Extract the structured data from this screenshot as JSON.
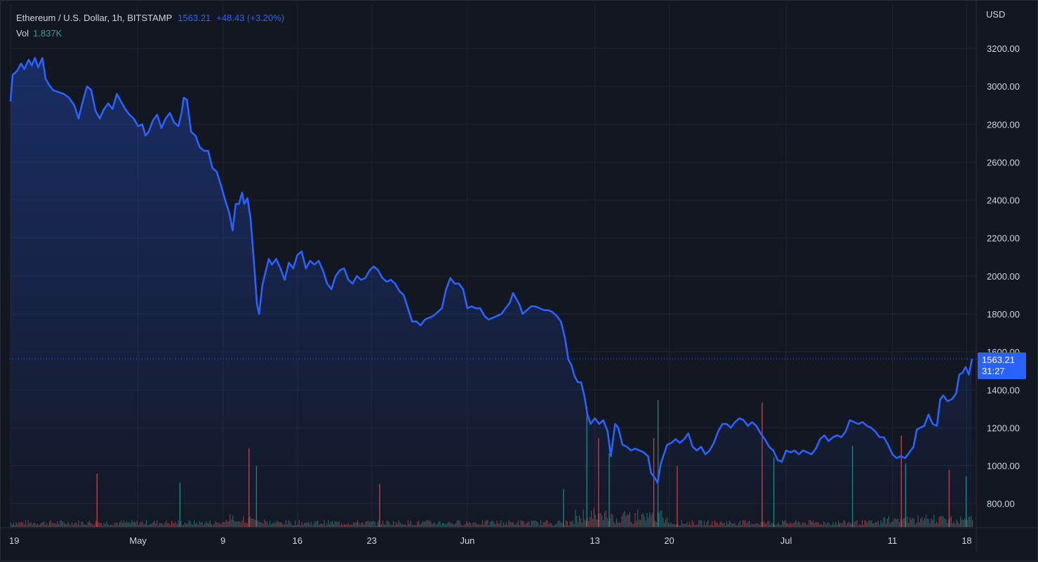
{
  "legend": {
    "symbol": "Ethereum / U.S. Dollar, 1h, BITSTAMP",
    "last": "1563.21",
    "change": "+48.43 (+3.20%)",
    "vol_label": "Vol",
    "vol_value": "1.837K"
  },
  "price_tag": {
    "price": "1563.21",
    "countdown": "31:27"
  },
  "colors": {
    "background": "#131722",
    "line": "#2962ff",
    "grid": "#1f2433",
    "vol_up": "#26a69a",
    "vol_down": "#ef5350"
  },
  "chart_data": {
    "type": "area",
    "currency": "USD",
    "timeframe": "1h",
    "grid": true,
    "ylim": [
      680,
      3320
    ],
    "y_ticks": [
      "3200.00",
      "3000.00",
      "2800.00",
      "2600.00",
      "2400.00",
      "2200.00",
      "2000.00",
      "1800.00",
      "1600.00",
      "1400.00",
      "1200.00",
      "1000.00",
      "800.00"
    ],
    "x_ticks": [
      {
        "label": "19",
        "day": 0
      },
      {
        "label": "May",
        "day": 12
      },
      {
        "label": "9",
        "day": 20
      },
      {
        "label": "16",
        "day": 27
      },
      {
        "label": "23",
        "day": 34
      },
      {
        "label": "Jun",
        "day": 43
      },
      {
        "label": "13",
        "day": 55
      },
      {
        "label": "20",
        "day": 62
      },
      {
        "label": "Jul",
        "day": 73
      },
      {
        "label": "11",
        "day": 83
      },
      {
        "label": "18",
        "day": 90
      }
    ],
    "x_range_days": [
      0,
      90.7
    ],
    "last_price": 1563.21,
    "series": [
      {
        "values": [
          [
            0,
            2920
          ],
          [
            0.2,
            3060
          ],
          [
            0.6,
            3080
          ],
          [
            1,
            3120
          ],
          [
            1.3,
            3090
          ],
          [
            1.7,
            3140
          ],
          [
            2,
            3110
          ],
          [
            2.3,
            3150
          ],
          [
            2.6,
            3100
          ],
          [
            3,
            3150
          ],
          [
            3.3,
            3040
          ],
          [
            3.6,
            3010
          ],
          [
            4,
            2980
          ],
          [
            4.5,
            2970
          ],
          [
            5,
            2960
          ],
          [
            5.5,
            2940
          ],
          [
            6,
            2900
          ],
          [
            6.4,
            2830
          ],
          [
            6.8,
            2920
          ],
          [
            7.2,
            3000
          ],
          [
            7.6,
            2980
          ],
          [
            8,
            2870
          ],
          [
            8.4,
            2830
          ],
          [
            8.8,
            2880
          ],
          [
            9.2,
            2910
          ],
          [
            9.6,
            2880
          ],
          [
            10,
            2960
          ],
          [
            10.4,
            2920
          ],
          [
            10.8,
            2880
          ],
          [
            11.2,
            2850
          ],
          [
            11.6,
            2830
          ],
          [
            12,
            2790
          ],
          [
            12.4,
            2800
          ],
          [
            12.7,
            2740
          ],
          [
            13,
            2760
          ],
          [
            13.4,
            2820
          ],
          [
            13.8,
            2850
          ],
          [
            14.2,
            2780
          ],
          [
            14.6,
            2830
          ],
          [
            15,
            2860
          ],
          [
            15.4,
            2810
          ],
          [
            15.8,
            2790
          ],
          [
            16.1,
            2860
          ],
          [
            16.3,
            2940
          ],
          [
            16.6,
            2930
          ],
          [
            17,
            2760
          ],
          [
            17.4,
            2740
          ],
          [
            17.8,
            2680
          ],
          [
            18.2,
            2660
          ],
          [
            18.6,
            2660
          ],
          [
            19,
            2570
          ],
          [
            19.4,
            2550
          ],
          [
            19.8,
            2480
          ],
          [
            20.2,
            2400
          ],
          [
            20.6,
            2330
          ],
          [
            20.9,
            2240
          ],
          [
            21.2,
            2380
          ],
          [
            21.5,
            2380
          ],
          [
            21.8,
            2440
          ],
          [
            22,
            2380
          ],
          [
            22.3,
            2410
          ],
          [
            22.6,
            2300
          ],
          [
            22.9,
            2080
          ],
          [
            23.2,
            1850
          ],
          [
            23.4,
            1800
          ],
          [
            23.7,
            1950
          ],
          [
            24,
            2020
          ],
          [
            24.3,
            2090
          ],
          [
            24.6,
            2060
          ],
          [
            25,
            2090
          ],
          [
            25.4,
            2040
          ],
          [
            25.8,
            1980
          ],
          [
            26.2,
            2070
          ],
          [
            26.6,
            2040
          ],
          [
            27,
            2110
          ],
          [
            27.4,
            2130
          ],
          [
            27.8,
            2040
          ],
          [
            28.2,
            2080
          ],
          [
            28.6,
            2060
          ],
          [
            29,
            2080
          ],
          [
            29.4,
            2030
          ],
          [
            29.8,
            1960
          ],
          [
            30.2,
            1930
          ],
          [
            30.6,
            2000
          ],
          [
            31,
            2030
          ],
          [
            31.4,
            2040
          ],
          [
            31.8,
            1980
          ],
          [
            32.2,
            1960
          ],
          [
            32.6,
            2000
          ],
          [
            33,
            1980
          ],
          [
            33.4,
            1990
          ],
          [
            33.8,
            2030
          ],
          [
            34.2,
            2050
          ],
          [
            34.6,
            2030
          ],
          [
            35,
            1990
          ],
          [
            35.4,
            1970
          ],
          [
            35.8,
            1980
          ],
          [
            36.2,
            1960
          ],
          [
            36.6,
            1920
          ],
          [
            37,
            1900
          ],
          [
            37.4,
            1830
          ],
          [
            37.8,
            1760
          ],
          [
            38.2,
            1760
          ],
          [
            38.6,
            1740
          ],
          [
            39,
            1770
          ],
          [
            39.4,
            1780
          ],
          [
            39.8,
            1790
          ],
          [
            40.2,
            1810
          ],
          [
            40.6,
            1830
          ],
          [
            41,
            1930
          ],
          [
            41.4,
            1990
          ],
          [
            41.8,
            1960
          ],
          [
            42.2,
            1960
          ],
          [
            42.6,
            1930
          ],
          [
            43,
            1830
          ],
          [
            43.4,
            1840
          ],
          [
            43.8,
            1830
          ],
          [
            44.2,
            1830
          ],
          [
            44.6,
            1790
          ],
          [
            45,
            1770
          ],
          [
            45.4,
            1780
          ],
          [
            45.8,
            1790
          ],
          [
            46.2,
            1800
          ],
          [
            46.6,
            1830
          ],
          [
            47,
            1860
          ],
          [
            47.3,
            1910
          ],
          [
            47.6,
            1880
          ],
          [
            47.9,
            1850
          ],
          [
            48.2,
            1800
          ],
          [
            48.6,
            1820
          ],
          [
            49,
            1840
          ],
          [
            49.4,
            1840
          ],
          [
            49.8,
            1830
          ],
          [
            50.2,
            1820
          ],
          [
            50.6,
            1820
          ],
          [
            51,
            1810
          ],
          [
            51.4,
            1790
          ],
          [
            51.8,
            1760
          ],
          [
            52.2,
            1670
          ],
          [
            52.5,
            1560
          ],
          [
            52.8,
            1530
          ],
          [
            53.1,
            1470
          ],
          [
            53.4,
            1440
          ],
          [
            53.7,
            1440
          ],
          [
            54,
            1370
          ],
          [
            54.3,
            1270
          ],
          [
            54.6,
            1220
          ],
          [
            55,
            1250
          ],
          [
            55.4,
            1220
          ],
          [
            55.8,
            1240
          ],
          [
            56.2,
            1180
          ],
          [
            56.5,
            1050
          ],
          [
            56.9,
            1220
          ],
          [
            57.2,
            1200
          ],
          [
            57.6,
            1110
          ],
          [
            58,
            1100
          ],
          [
            58.4,
            1080
          ],
          [
            58.8,
            1090
          ],
          [
            59.2,
            1080
          ],
          [
            59.6,
            1070
          ],
          [
            60,
            1050
          ],
          [
            60.3,
            960
          ],
          [
            60.6,
            940
          ],
          [
            60.9,
            910
          ],
          [
            61.2,
            1010
          ],
          [
            61.5,
            1060
          ],
          [
            61.8,
            1110
          ],
          [
            62.2,
            1120
          ],
          [
            62.6,
            1140
          ],
          [
            63,
            1120
          ],
          [
            63.4,
            1140
          ],
          [
            63.8,
            1170
          ],
          [
            64.2,
            1100
          ],
          [
            64.6,
            1080
          ],
          [
            65,
            1100
          ],
          [
            65.4,
            1060
          ],
          [
            65.8,
            1080
          ],
          [
            66.2,
            1120
          ],
          [
            66.6,
            1180
          ],
          [
            67,
            1220
          ],
          [
            67.4,
            1220
          ],
          [
            67.8,
            1200
          ],
          [
            68.2,
            1230
          ],
          [
            68.6,
            1250
          ],
          [
            69,
            1240
          ],
          [
            69.4,
            1210
          ],
          [
            69.8,
            1230
          ],
          [
            70.2,
            1210
          ],
          [
            70.6,
            1170
          ],
          [
            71,
            1140
          ],
          [
            71.4,
            1100
          ],
          [
            71.8,
            1080
          ],
          [
            72.2,
            1030
          ],
          [
            72.6,
            1020
          ],
          [
            73,
            1080
          ],
          [
            73.4,
            1070
          ],
          [
            73.8,
            1080
          ],
          [
            74.2,
            1060
          ],
          [
            74.6,
            1080
          ],
          [
            75,
            1070
          ],
          [
            75.4,
            1060
          ],
          [
            75.8,
            1090
          ],
          [
            76.2,
            1140
          ],
          [
            76.6,
            1160
          ],
          [
            77,
            1130
          ],
          [
            77.4,
            1150
          ],
          [
            77.8,
            1160
          ],
          [
            78.2,
            1150
          ],
          [
            78.6,
            1180
          ],
          [
            79,
            1240
          ],
          [
            79.4,
            1230
          ],
          [
            79.8,
            1220
          ],
          [
            80.2,
            1230
          ],
          [
            80.6,
            1210
          ],
          [
            81,
            1200
          ],
          [
            81.4,
            1180
          ],
          [
            81.8,
            1150
          ],
          [
            82.2,
            1150
          ],
          [
            82.6,
            1110
          ],
          [
            83,
            1060
          ],
          [
            83.4,
            1040
          ],
          [
            83.8,
            1050
          ],
          [
            84.2,
            1040
          ],
          [
            84.6,
            1070
          ],
          [
            85,
            1100
          ],
          [
            85.3,
            1190
          ],
          [
            85.6,
            1200
          ],
          [
            86,
            1210
          ],
          [
            86.4,
            1270
          ],
          [
            86.8,
            1220
          ],
          [
            87.2,
            1210
          ],
          [
            87.5,
            1350
          ],
          [
            87.8,
            1370
          ],
          [
            88.2,
            1340
          ],
          [
            88.6,
            1350
          ],
          [
            89,
            1380
          ],
          [
            89.3,
            1480
          ],
          [
            89.6,
            1490
          ],
          [
            89.9,
            1520
          ],
          [
            90.2,
            1480
          ],
          [
            90.5,
            1563
          ]
        ]
      }
    ],
    "volume": {
      "label": "Vol",
      "last": "1.837K",
      "spikes": [
        {
          "day": 8.1,
          "v": 0.42,
          "up": false
        },
        {
          "day": 15.9,
          "v": 0.35,
          "up": true
        },
        {
          "day": 22.4,
          "v": 0.62,
          "up": false
        },
        {
          "day": 23.1,
          "v": 0.48,
          "up": true
        },
        {
          "day": 34.7,
          "v": 0.34,
          "up": false
        },
        {
          "day": 52.0,
          "v": 0.3,
          "up": true
        },
        {
          "day": 54.2,
          "v": 0.95,
          "up": true
        },
        {
          "day": 55.3,
          "v": 0.7,
          "up": false
        },
        {
          "day": 56.3,
          "v": 0.58,
          "up": true
        },
        {
          "day": 60.5,
          "v": 0.7,
          "up": false
        },
        {
          "day": 60.9,
          "v": 1.0,
          "up": true
        },
        {
          "day": 62.7,
          "v": 0.48,
          "up": false
        },
        {
          "day": 70.7,
          "v": 0.98,
          "up": false
        },
        {
          "day": 71.8,
          "v": 0.55,
          "up": true
        },
        {
          "day": 79.2,
          "v": 0.64,
          "up": true
        },
        {
          "day": 83.8,
          "v": 0.72,
          "up": false
        },
        {
          "day": 84.2,
          "v": 0.5,
          "up": true
        },
        {
          "day": 88.3,
          "v": 0.45,
          "up": false
        },
        {
          "day": 89.9,
          "v": 0.4,
          "up": true
        }
      ]
    }
  }
}
